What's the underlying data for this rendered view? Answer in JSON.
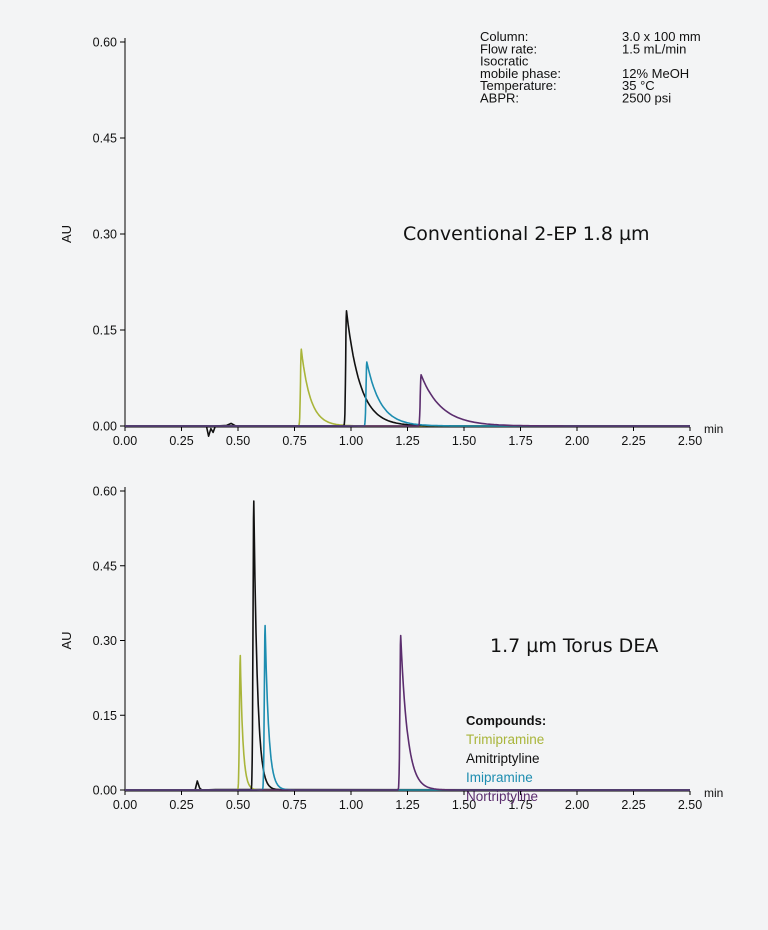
{
  "chart_data": [
    {
      "type": "line",
      "xlabel": "",
      "xunit": "min",
      "ylabel": "AU",
      "xlim": [
        0.0,
        2.5
      ],
      "ylim": [
        0.0,
        0.6
      ],
      "x_ticks": [
        "0.00",
        "0.25",
        "0.50",
        "0.75",
        "1.00",
        "1.25",
        "1.50",
        "1.75",
        "2.00",
        "2.25",
        "2.50"
      ],
      "y_ticks": [
        "0.00",
        "0.15",
        "0.30",
        "0.45",
        "0.60"
      ],
      "grid": false,
      "label": "Conventional 2-EP 1.8 µm",
      "conditions": [
        {
          "name": "Column:",
          "value": "3.0 x 100 mm"
        },
        {
          "name": "Flow rate:",
          "value": "1.5 mL/min"
        },
        {
          "name": "Isocratic",
          "value": ""
        },
        {
          "name": "mobile phase:",
          "value": "12% MeOH"
        },
        {
          "name": "Temperature:",
          "value": "35 °C"
        },
        {
          "name": "ABPR:",
          "value": "2500 psi"
        }
      ],
      "series": [
        {
          "color": "#a9b53a",
          "peak": {
            "x": 0.78,
            "y": 0.12
          }
        },
        {
          "color": "#111111",
          "peak": {
            "x": 0.98,
            "y": 0.18
          }
        },
        {
          "color": "#1d8db0",
          "peak": {
            "x": 1.07,
            "y": 0.1
          }
        },
        {
          "color": "#5b2d6e",
          "peak": {
            "x": 1.31,
            "y": 0.08
          }
        }
      ]
    },
    {
      "type": "line",
      "xlabel": "",
      "xunit": "min",
      "ylabel": "AU",
      "xlim": [
        0.0,
        2.5
      ],
      "ylim": [
        0.0,
        0.6
      ],
      "x_ticks": [
        "0.00",
        "0.25",
        "0.50",
        "0.75",
        "1.00",
        "1.25",
        "1.50",
        "1.75",
        "2.00",
        "2.25",
        "2.50"
      ],
      "y_ticks": [
        "0.00",
        "0.15",
        "0.30",
        "0.45",
        "0.60"
      ],
      "grid": false,
      "label": "1.7 µm Torus DEA",
      "legend": {
        "title": "Compounds:",
        "placement": "right",
        "items": [
          {
            "name": "Trimipramine",
            "color": "#a9b53a"
          },
          {
            "name": "Amitriptyline",
            "color": "#111111"
          },
          {
            "name": "Imipramine",
            "color": "#1d8db0"
          },
          {
            "name": "Nortriptyline",
            "color": "#5b2d6e"
          }
        ]
      },
      "series": [
        {
          "color": "#a9b53a",
          "peak": {
            "x": 0.51,
            "y": 0.27
          }
        },
        {
          "color": "#111111",
          "peak": {
            "x": 0.57,
            "y": 0.58
          }
        },
        {
          "color": "#1d8db0",
          "peak": {
            "x": 0.62,
            "y": 0.33
          }
        },
        {
          "color": "#5b2d6e",
          "peak": {
            "x": 1.22,
            "y": 0.31
          }
        }
      ]
    }
  ]
}
